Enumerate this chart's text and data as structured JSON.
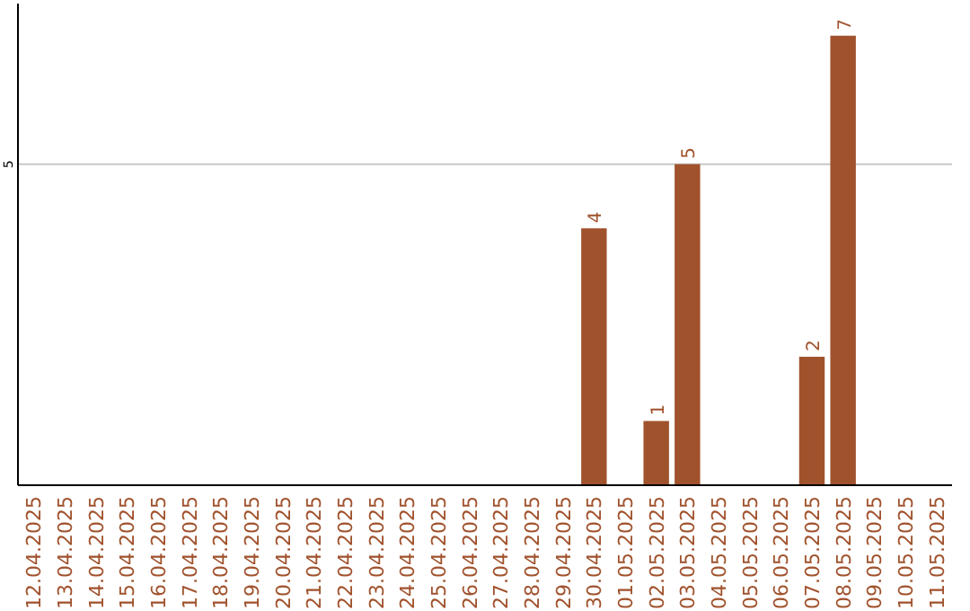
{
  "chart_data": {
    "type": "bar",
    "categories": [
      "12.04.2025",
      "13.04.2025",
      "14.04.2025",
      "15.04.2025",
      "16.04.2025",
      "17.04.2025",
      "18.04.2025",
      "19.04.2025",
      "20.04.2025",
      "21.04.2025",
      "22.04.2025",
      "23.04.2025",
      "24.04.2025",
      "25.04.2025",
      "26.04.2025",
      "27.04.2025",
      "28.04.2025",
      "29.04.2025",
      "30.04.2025",
      "01.05.2025",
      "02.05.2025",
      "03.05.2025",
      "04.05.2025",
      "05.05.2025",
      "06.05.2025",
      "07.05.2025",
      "08.05.2025",
      "09.05.2025",
      "10.05.2025",
      "11.05.2025"
    ],
    "values": [
      null,
      null,
      null,
      null,
      null,
      null,
      null,
      null,
      null,
      null,
      null,
      null,
      null,
      null,
      null,
      null,
      null,
      null,
      4,
      null,
      1,
      5,
      null,
      null,
      null,
      2,
      7,
      null,
      null,
      null
    ],
    "color": "#a0522d",
    "ylim": [
      0,
      7.5
    ],
    "yticks": [
      5
    ],
    "grid": "y",
    "data_labels": true
  }
}
